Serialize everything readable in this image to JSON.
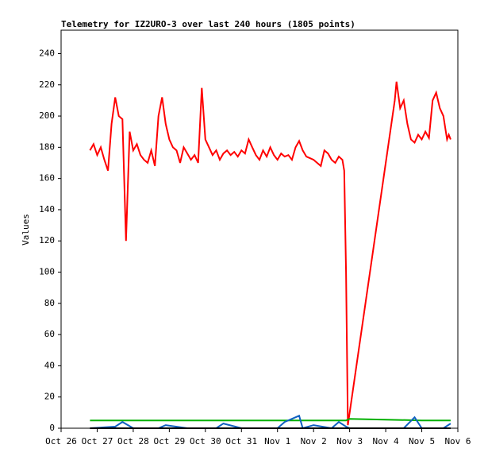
{
  "chart_data": {
    "type": "line",
    "title": "Telemetry for IZ2URO-3 over last 240 hours (1805 points)",
    "y_label": "Values",
    "xlim": [
      0,
      11
    ],
    "xticks": [
      {
        "value": 0,
        "label": "Oct 26"
      },
      {
        "value": 1,
        "label": "Oct 27"
      },
      {
        "value": 2,
        "label": "Oct 28"
      },
      {
        "value": 3,
        "label": "Oct 29"
      },
      {
        "value": 4,
        "label": "Oct 30"
      },
      {
        "value": 5,
        "label": "Oct 31"
      },
      {
        "value": 6,
        "label": "Nov 1"
      },
      {
        "value": 7,
        "label": "Nov 2"
      },
      {
        "value": 8,
        "label": "Nov 3"
      },
      {
        "value": 9,
        "label": "Nov 4"
      },
      {
        "value": 10,
        "label": "Nov 5"
      },
      {
        "value": 11,
        "label": "Nov 6"
      }
    ],
    "ylim": [
      0,
      255
    ],
    "yticks": [
      0,
      20,
      40,
      60,
      80,
      100,
      120,
      140,
      160,
      180,
      200,
      220,
      240
    ],
    "grid": false,
    "series": [
      {
        "color": "#ff0000",
        "x": [
          0.8,
          0.9,
          1.0,
          1.1,
          1.2,
          1.3,
          1.4,
          1.5,
          1.6,
          1.7,
          1.8,
          1.9,
          2.0,
          2.1,
          2.2,
          2.3,
          2.4,
          2.5,
          2.6,
          2.7,
          2.8,
          2.9,
          3.0,
          3.1,
          3.2,
          3.3,
          3.4,
          3.5,
          3.6,
          3.7,
          3.8,
          3.9,
          4.0,
          4.1,
          4.2,
          4.3,
          4.4,
          4.5,
          4.6,
          4.7,
          4.8,
          4.9,
          5.0,
          5.1,
          5.2,
          5.3,
          5.4,
          5.5,
          5.6,
          5.7,
          5.8,
          5.9,
          6.0,
          6.1,
          6.2,
          6.3,
          6.4,
          6.5,
          6.6,
          6.7,
          6.8,
          6.9,
          7.0,
          7.1,
          7.2,
          7.3,
          7.4,
          7.5,
          7.6,
          7.7,
          7.8,
          7.85,
          7.9,
          7.95,
          9.25,
          9.3,
          9.4,
          9.5,
          9.6,
          9.7,
          9.8,
          9.9,
          10.0,
          10.1,
          10.2,
          10.3,
          10.4,
          10.5,
          10.6,
          10.7,
          10.75,
          10.8
        ],
        "values": [
          178,
          182,
          175,
          180,
          172,
          165,
          195,
          212,
          200,
          198,
          120,
          190,
          178,
          182,
          175,
          172,
          170,
          178,
          168,
          200,
          212,
          195,
          185,
          180,
          178,
          170,
          180,
          176,
          172,
          175,
          170,
          218,
          185,
          180,
          175,
          178,
          172,
          176,
          178,
          175,
          177,
          174,
          178,
          176,
          185,
          180,
          175,
          172,
          178,
          174,
          180,
          175,
          172,
          176,
          174,
          175,
          172,
          180,
          184,
          178,
          174,
          173,
          172,
          170,
          168,
          178,
          176,
          172,
          170,
          174,
          172,
          165,
          100,
          2,
          210,
          222,
          205,
          210,
          195,
          185,
          183,
          188,
          185,
          190,
          186,
          210,
          215,
          205,
          200,
          185,
          188,
          185
        ]
      },
      {
        "color": "#00b000",
        "x": [
          0.8,
          2.0,
          4.0,
          6.0,
          7.9,
          8.0,
          9.0,
          10.0,
          10.8
        ],
        "values": [
          5,
          5,
          5,
          5,
          5,
          6,
          5.5,
          5,
          5
        ]
      },
      {
        "color": "#1060c0",
        "x": [
          0.8,
          1.5,
          1.7,
          2.0,
          2.7,
          2.9,
          3.5,
          4.3,
          4.5,
          5.0,
          5.5,
          6.0,
          6.2,
          6.6,
          6.7,
          7.0,
          7.5,
          7.7,
          7.9,
          8.0,
          9.5,
          9.8,
          10.0,
          10.6,
          10.8
        ],
        "values": [
          0,
          1,
          4,
          0,
          0,
          2,
          0,
          0,
          3,
          0,
          0,
          0,
          4,
          8,
          0,
          2,
          0,
          4,
          1,
          0,
          0,
          7,
          0,
          0,
          3
        ]
      },
      {
        "color": "#000000",
        "x": [
          0.8,
          10.8
        ],
        "values": [
          0,
          0
        ]
      }
    ]
  }
}
